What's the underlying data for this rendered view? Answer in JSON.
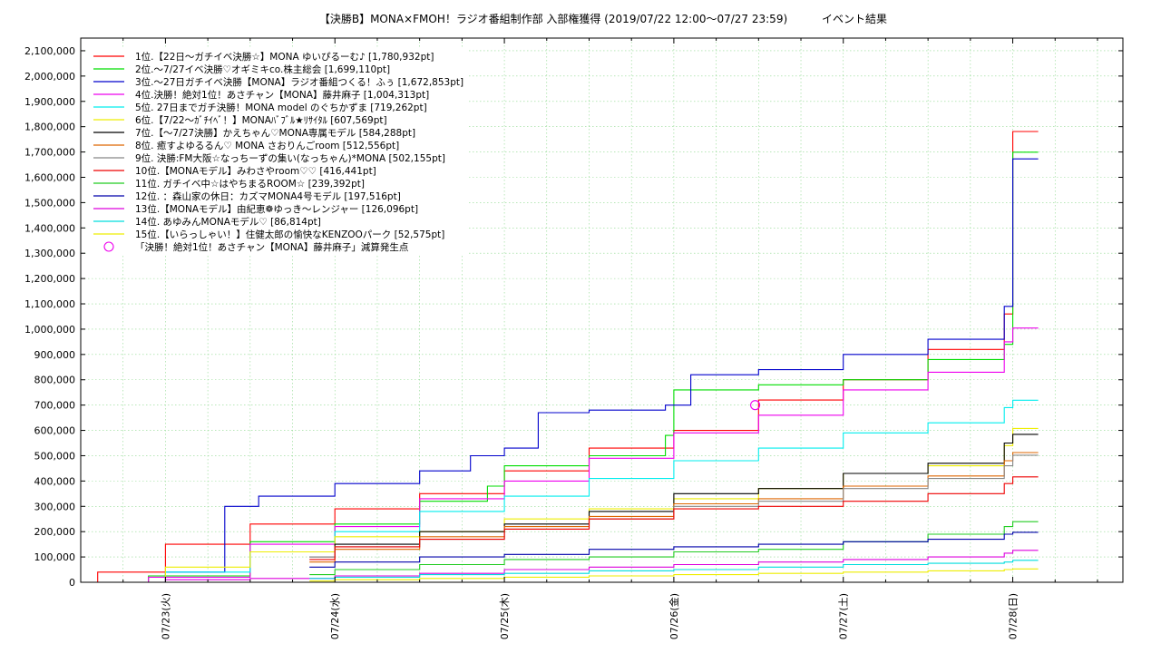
{
  "chart_data": {
    "type": "line",
    "title": "【決勝B】MONA×FMOH！ラジオ番組制作部 入部権獲得 (2019/07/22 12:00～07/27 23:59)",
    "subtitle": "イベント結果",
    "ylim": [
      0,
      2150000
    ],
    "yticks": [
      0,
      100000,
      200000,
      300000,
      400000,
      500000,
      600000,
      700000,
      800000,
      900000,
      1000000,
      1100000,
      1200000,
      1300000,
      1400000,
      1500000,
      1600000,
      1700000,
      1800000,
      1900000,
      2000000,
      2100000
    ],
    "ytick_labels": [
      "0",
      "100,000",
      "200,000",
      "300,000",
      "400,000",
      "500,000",
      "600,000",
      "700,000",
      "800,000",
      "900,000",
      "1,000,000",
      "1,100,000",
      "1,200,000",
      "1,300,000",
      "1,400,000",
      "1,500,000",
      "1,600,000",
      "1,700,000",
      "1,800,000",
      "1,900,000",
      "2,000,000",
      "2,100,000"
    ],
    "xlim": [
      0.5,
      6.65
    ],
    "xticks": [
      1,
      2,
      3,
      4,
      5,
      6
    ],
    "xtick_labels": [
      "07/23(火)",
      "07/24(水)",
      "07/25(木)",
      "07/26(金)",
      "07/27(土)",
      "07/28(日)"
    ],
    "grid": true,
    "legend_position": "top-left",
    "series": [
      {
        "name": "1位.【22日～ガチイベ決勝☆】MONA ゆいぴるーむ♪ [1,780,932pt]",
        "color": "#ff0000",
        "x": [
          0.5,
          0.6,
          1.0,
          1.5,
          2.0,
          2.5,
          3.0,
          3.5,
          4.0,
          4.5,
          5.0,
          5.5,
          5.95,
          6.0,
          6.0,
          6.15
        ],
        "y": [
          0,
          40000,
          150000,
          230000,
          290000,
          350000,
          440000,
          530000,
          600000,
          720000,
          800000,
          920000,
          1060000,
          1110000,
          1780932,
          1780932
        ]
      },
      {
        "name": "2位.～7/27イベ決勝♡オギミキco.株主総会 [1,699,110pt]",
        "color": "#00dd00",
        "x": [
          0.5,
          0.9,
          1.5,
          2.0,
          2.5,
          2.9,
          3.0,
          3.5,
          3.95,
          4.0,
          4.5,
          5.0,
          5.5,
          5.95,
          6.0,
          6.0,
          6.15
        ],
        "y": [
          0,
          25000,
          160000,
          230000,
          320000,
          380000,
          460000,
          500000,
          580000,
          760000,
          780000,
          800000,
          880000,
          940000,
          1000000,
          1699110,
          1699110
        ]
      },
      {
        "name": "3位.～27日ガチイベ決勝【MONA】ラジオ番組つくる！ふぅ [1,672,853pt]",
        "color": "#0000cc",
        "x": [
          0.5,
          1.0,
          1.35,
          1.55,
          2.0,
          2.5,
          2.8,
          3.0,
          3.2,
          3.5,
          3.95,
          4.1,
          4.5,
          5.0,
          5.5,
          5.95,
          6.0,
          6.0,
          6.15
        ],
        "y": [
          0,
          40000,
          300000,
          340000,
          390000,
          440000,
          500000,
          530000,
          670000,
          680000,
          700000,
          820000,
          840000,
          900000,
          960000,
          1090000,
          1120000,
          1672853,
          1672853
        ]
      },
      {
        "name": "4位.決勝！絶対1位！あさチャン【MONA】藤井麻子 [1,004,313pt]",
        "color": "#ee00ee",
        "x": [
          0.5,
          0.9,
          1.5,
          2.0,
          2.5,
          3.0,
          3.5,
          4.0,
          4.5,
          5.0,
          5.5,
          5.95,
          6.0,
          6.15
        ],
        "y": [
          0,
          20000,
          150000,
          220000,
          330000,
          400000,
          490000,
          590000,
          660000,
          760000,
          830000,
          950000,
          1004313,
          1004313
        ]
      },
      {
        "name": "5位. 27日までガチ決勝！MONA model のぐちかずま [719,262pt]",
        "color": "#00eeee",
        "x": [
          0.5,
          1.0,
          1.5,
          2.0,
          2.5,
          3.0,
          3.5,
          4.0,
          4.5,
          5.0,
          5.5,
          5.95,
          6.0,
          6.15
        ],
        "y": [
          0,
          40000,
          120000,
          200000,
          280000,
          340000,
          410000,
          480000,
          530000,
          590000,
          630000,
          690000,
          719262,
          719262
        ]
      },
      {
        "name": "6位.【7/22～ｶﾞﾁｲﾍﾞ！】MONAﾊﾞﾌﾞﾙ★ﾘｻｲﾀﾙ [607,569pt]",
        "color": "#eeee00",
        "x": [
          0.5,
          1.0,
          1.5,
          2.0,
          2.5,
          3.0,
          3.5,
          4.0,
          4.5,
          5.0,
          5.5,
          5.95,
          6.0,
          6.15
        ],
        "y": [
          0,
          60000,
          120000,
          180000,
          200000,
          250000,
          290000,
          330000,
          370000,
          430000,
          460000,
          540000,
          607569,
          607569
        ]
      },
      {
        "name": "7位.【～7/27決勝】かえちゃん♡MONA専属モデル [584,288pt]",
        "color": "#000000",
        "x": [
          1.85,
          2.0,
          2.5,
          3.0,
          3.5,
          4.0,
          4.5,
          5.0,
          5.5,
          5.95,
          6.0,
          6.15
        ],
        "y": [
          100000,
          150000,
          200000,
          230000,
          280000,
          350000,
          370000,
          430000,
          470000,
          550000,
          584288,
          584288
        ]
      },
      {
        "name": "8位. 癒すよゆるるん♡ MONA さおりんごroom [512,556pt]",
        "color": "#dd6600",
        "x": [
          1.85,
          2.0,
          2.5,
          3.0,
          3.5,
          4.0,
          4.5,
          5.0,
          5.5,
          5.95,
          6.0,
          6.15
        ],
        "y": [
          80000,
          130000,
          180000,
          220000,
          260000,
          310000,
          330000,
          380000,
          420000,
          480000,
          512556,
          512556
        ]
      },
      {
        "name": "9位. 決勝:FM大阪☆なっちーずの集い(なっちゃん)*MONA [502,155pt]",
        "color": "#888888",
        "x": [
          1.85,
          2.0,
          2.5,
          3.0,
          3.5,
          4.0,
          4.5,
          5.0,
          5.5,
          5.95,
          6.0,
          6.15
        ],
        "y": [
          100000,
          140000,
          170000,
          210000,
          250000,
          300000,
          320000,
          370000,
          410000,
          460000,
          502155,
          502155
        ]
      },
      {
        "name": "10位.【MONAモデル】みわさやroom♡♡ [416,441pt]",
        "color": "#ee0000",
        "x": [
          1.85,
          2.0,
          2.5,
          3.0,
          3.5,
          4.0,
          4.5,
          5.0,
          5.5,
          5.95,
          6.0,
          6.15
        ],
        "y": [
          90000,
          140000,
          170000,
          210000,
          250000,
          290000,
          300000,
          320000,
          350000,
          390000,
          416441,
          416441
        ]
      },
      {
        "name": "11位. ガチイベ中☆はやちまるROOM☆ [239,392pt]",
        "color": "#22cc22",
        "x": [
          1.85,
          2.0,
          2.5,
          3.0,
          3.5,
          4.0,
          4.5,
          5.0,
          5.5,
          5.95,
          6.0,
          6.15
        ],
        "y": [
          30000,
          50000,
          70000,
          90000,
          100000,
          120000,
          130000,
          160000,
          190000,
          220000,
          239392,
          239392
        ]
      },
      {
        "name": "12位. ：森山家の休日：カズマMONA4号モデル [197,516pt]",
        "color": "#0000aa",
        "x": [
          1.85,
          2.0,
          2.5,
          3.0,
          3.5,
          4.0,
          4.5,
          5.0,
          5.5,
          5.95,
          6.0,
          6.15
        ],
        "y": [
          60000,
          80000,
          100000,
          110000,
          130000,
          140000,
          150000,
          160000,
          170000,
          190000,
          197516,
          197516
        ]
      },
      {
        "name": "13位.【MONAモデル】由紀恵❁ゆっき～レンジャー [126,096pt]",
        "color": "#dd00dd",
        "x": [
          0.5,
          1.0,
          1.5,
          2.0,
          2.5,
          3.0,
          3.5,
          4.0,
          4.5,
          5.0,
          5.5,
          5.95,
          6.0,
          6.15
        ],
        "y": [
          0,
          10000,
          15000,
          25000,
          35000,
          50000,
          60000,
          70000,
          80000,
          90000,
          100000,
          115000,
          126096,
          126096
        ]
      },
      {
        "name": "14位. あゆみんMONAモデル♡ [86,814pt]",
        "color": "#00dddd",
        "x": [
          1.85,
          2.0,
          2.5,
          3.0,
          3.5,
          4.0,
          4.5,
          5.0,
          5.5,
          5.95,
          6.0,
          6.15
        ],
        "y": [
          15000,
          20000,
          30000,
          35000,
          45000,
          50000,
          60000,
          70000,
          75000,
          80000,
          86814,
          86814
        ]
      },
      {
        "name": "15位.【いらっしゃい！】住健太郎の愉快なKENZOOパーク [52,575pt]",
        "color": "#eeee00",
        "x": [
          1.85,
          2.0,
          2.5,
          3.0,
          3.5,
          4.0,
          4.5,
          5.0,
          5.5,
          5.95,
          6.0,
          6.15
        ],
        "y": [
          5000,
          10000,
          15000,
          20000,
          25000,
          30000,
          35000,
          40000,
          45000,
          50000,
          52575,
          52575
        ]
      }
    ],
    "annotation": {
      "label": "「決勝！絶対1位！あさチャン【MONA】藤井麻子」減算発生点",
      "color": "#ee00ee",
      "x": 4.48,
      "y": 700000
    }
  }
}
